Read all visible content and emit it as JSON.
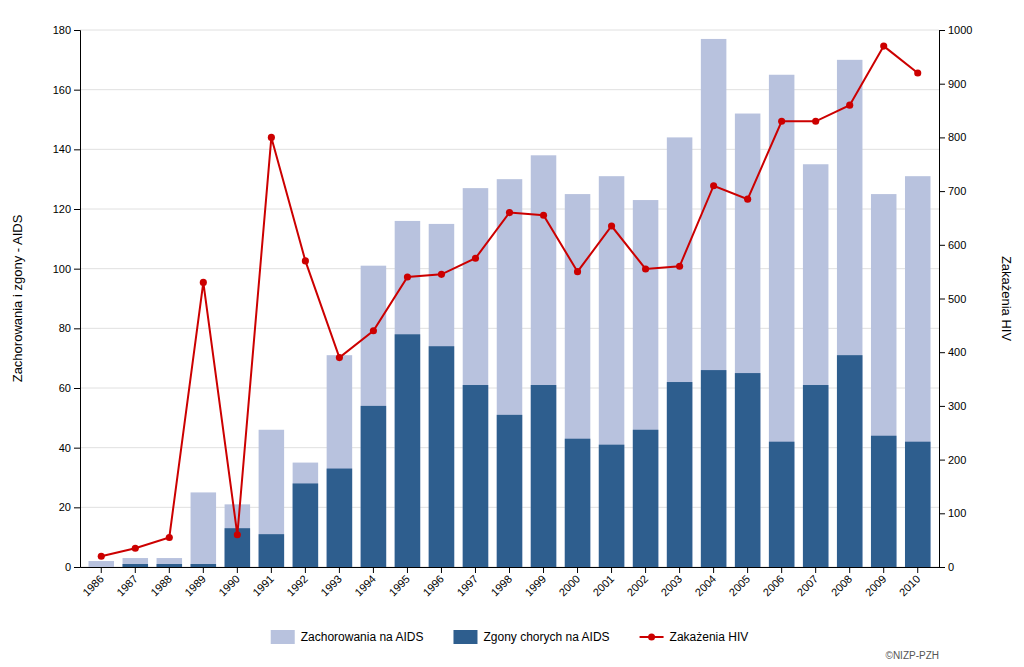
{
  "chart_data": {
    "type": "bar",
    "categories": [
      "1986",
      "1987",
      "1988",
      "1989",
      "1990",
      "1991",
      "1992",
      "1993",
      "1994",
      "1995",
      "1996",
      "1997",
      "1998",
      "1999",
      "2000",
      "2001",
      "2002",
      "2003",
      "2004",
      "2005",
      "2006",
      "2007",
      "2008",
      "2009",
      "2010"
    ],
    "series": [
      {
        "name": "Zachorowania na AIDS",
        "color": "#b8c2de",
        "values": [
          2,
          3,
          3,
          25,
          21,
          46,
          35,
          71,
          101,
          116,
          115,
          127,
          130,
          138,
          125,
          131,
          123,
          144,
          177,
          152,
          165,
          135,
          170,
          125,
          131
        ]
      },
      {
        "name": "Zgony chorych na AIDS",
        "color": "#2e5e8e",
        "values": [
          0,
          1,
          1,
          1,
          13,
          11,
          28,
          33,
          54,
          78,
          74,
          61,
          51,
          61,
          43,
          41,
          46,
          62,
          66,
          65,
          42,
          61,
          71,
          44,
          42
        ]
      },
      {
        "name": "Zakażenia HIV",
        "type": "line",
        "axis": "y2",
        "color": "#cc0000",
        "marker": "circle",
        "values": [
          20,
          35,
          55,
          530,
          60,
          800,
          570,
          390,
          440,
          540,
          545,
          575,
          660,
          655,
          550,
          635,
          555,
          560,
          710,
          685,
          830,
          830,
          860,
          970,
          920
        ]
      }
    ],
    "ylabel": "Zachorowania i zgony - AIDS",
    "y2label": "Zakażenia HIV",
    "ylim": [
      0,
      180
    ],
    "yticks": [
      0,
      20,
      40,
      60,
      80,
      100,
      120,
      140,
      160,
      180
    ],
    "y2lim": [
      0,
      1000
    ],
    "y2ticks": [
      0,
      100,
      200,
      300,
      400,
      500,
      600,
      700,
      800,
      900,
      1000
    ],
    "grid": true,
    "legend": "bottom",
    "annotations": [
      "©NIZP-PZH"
    ]
  }
}
